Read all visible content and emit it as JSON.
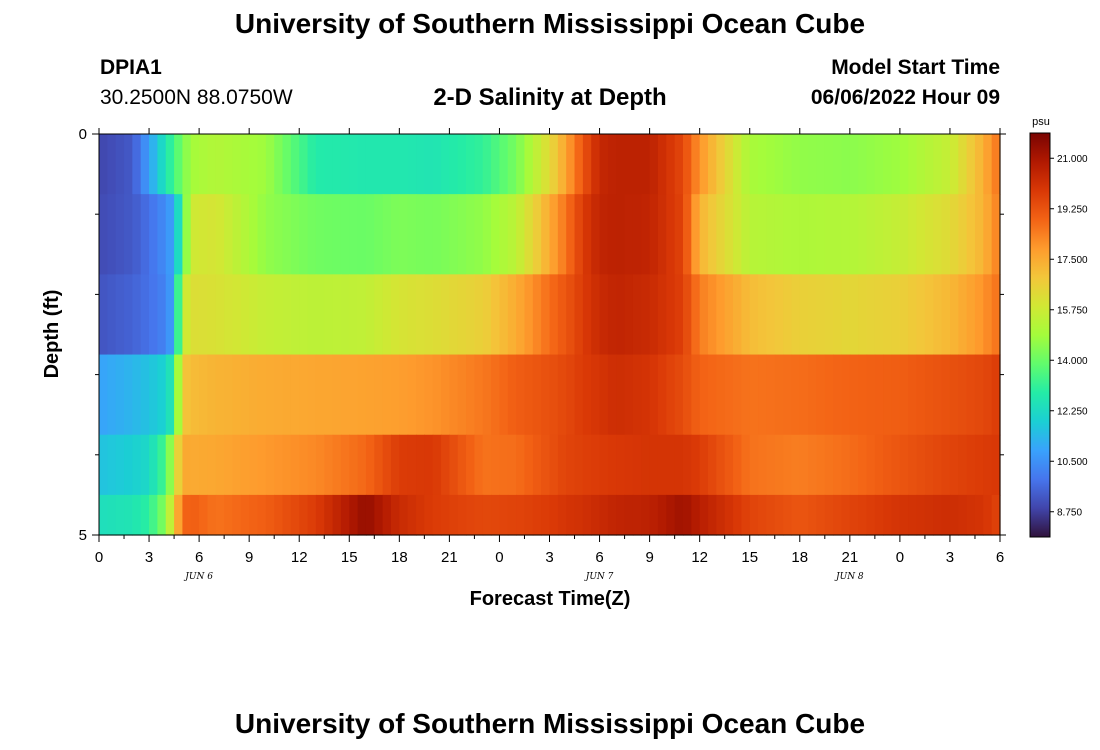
{
  "header": {
    "title": "University of Southern Mississippi Ocean Cube",
    "station_id": "DPIA1",
    "coordinates": "30.2500N  88.0750W",
    "model_start_label": "Model Start Time",
    "model_start_value": "06/06/2022 Hour 09",
    "subtitle": "2-D Salinity at Depth"
  },
  "footer": {
    "title": "University of Southern Mississippi Ocean Cube"
  },
  "colors": {
    "stops": [
      "#30123b",
      "#4145ab",
      "#4675ed",
      "#39a2fc",
      "#1bcfd4",
      "#24eca6",
      "#61fc6c",
      "#a4fc3b",
      "#d1e834",
      "#f3c63a",
      "#fe9b2d",
      "#f36315",
      "#d93806",
      "#b11901",
      "#7a0402"
    ]
  },
  "chart_data": {
    "type": "heatmap",
    "title": "2-D Salinity at Depth",
    "xlabel": "Forecast Time(Z)",
    "ylabel": "Depth (ft)",
    "x_tick_labels": [
      "0",
      "3",
      "6",
      "9",
      "12",
      "15",
      "18",
      "21",
      "0",
      "3",
      "6",
      "9",
      "12",
      "15",
      "18",
      "21",
      "0",
      "3",
      "6"
    ],
    "x_range_hours": [
      0,
      54
    ],
    "y_tick_labels": [
      "0",
      "5"
    ],
    "y_range": [
      0,
      5
    ],
    "date_labels": [
      "JUN 6",
      "JUN 7",
      "JUN 8"
    ],
    "colorbar": {
      "unit": "psu",
      "range": [
        7.875,
        21.875
      ],
      "ticks": [
        "21.000",
        "19.250",
        "17.500",
        "15.750",
        "14.000",
        "12.250",
        "10.500",
        "8.750"
      ]
    },
    "depth_layers": [
      0.25,
      1.25,
      2.25,
      3.25,
      4.25,
      4.75
    ],
    "keyframe_hours": [
      0,
      2,
      3,
      4,
      4.5,
      5,
      5.5,
      7,
      10,
      13,
      16,
      18,
      20,
      23,
      25,
      27,
      28,
      29,
      30,
      31,
      33,
      35,
      36,
      39,
      42,
      45,
      48,
      51,
      53,
      54
    ],
    "salinity_rows": [
      [
        8.9,
        9.3,
        10.8,
        12.6,
        13.4,
        14.2,
        14.9,
        15.2,
        14.8,
        12.8,
        12.7,
        12.7,
        12.6,
        13.1,
        14.2,
        16.3,
        17.7,
        19.2,
        20.4,
        20.6,
        20.6,
        19.5,
        18.0,
        15.0,
        14.6,
        14.5,
        14.8,
        15.6,
        17.4,
        18.7
      ],
      [
        9.0,
        9.3,
        9.8,
        10.4,
        11.0,
        13.5,
        15.8,
        16.0,
        14.6,
        14.1,
        14.0,
        14.3,
        14.2,
        14.6,
        15.4,
        17.5,
        18.6,
        19.8,
        20.5,
        20.6,
        20.5,
        19.6,
        17.3,
        15.3,
        15.1,
        15.2,
        15.6,
        16.3,
        17.3,
        18.5
      ],
      [
        9.2,
        9.5,
        9.8,
        10.2,
        11.0,
        15.5,
        16.2,
        16.1,
        15.6,
        15.4,
        15.5,
        16.0,
        16.2,
        16.6,
        17.5,
        18.7,
        19.2,
        19.8,
        20.3,
        20.5,
        20.3,
        19.7,
        18.4,
        17.1,
        16.6,
        16.4,
        16.6,
        17.2,
        18.0,
        18.7
      ],
      [
        10.9,
        11.3,
        11.6,
        12.0,
        13.0,
        16.8,
        17.1,
        17.3,
        17.5,
        17.6,
        17.7,
        17.8,
        18.0,
        18.5,
        19.0,
        19.3,
        19.5,
        19.8,
        20.0,
        20.2,
        20.0,
        19.4,
        18.9,
        18.6,
        18.7,
        18.9,
        19.0,
        19.3,
        19.5,
        19.8
      ],
      [
        11.6,
        11.9,
        12.2,
        13.5,
        15.5,
        17.6,
        17.5,
        17.6,
        17.9,
        18.2,
        18.8,
        19.8,
        19.9,
        18.6,
        18.7,
        19.3,
        19.6,
        19.7,
        19.8,
        19.9,
        20.0,
        20.0,
        19.8,
        18.6,
        18.4,
        18.7,
        19.2,
        19.6,
        19.8,
        19.9
      ],
      [
        12.4,
        12.6,
        13.0,
        14.5,
        16.5,
        18.8,
        19.0,
        18.6,
        19.0,
        19.8,
        21.4,
        20.3,
        19.8,
        19.5,
        19.6,
        19.8,
        20.0,
        20.1,
        20.3,
        20.5,
        20.6,
        21.2,
        20.7,
        19.6,
        19.2,
        19.6,
        20.0,
        20.2,
        20.0,
        19.6
      ]
    ]
  }
}
